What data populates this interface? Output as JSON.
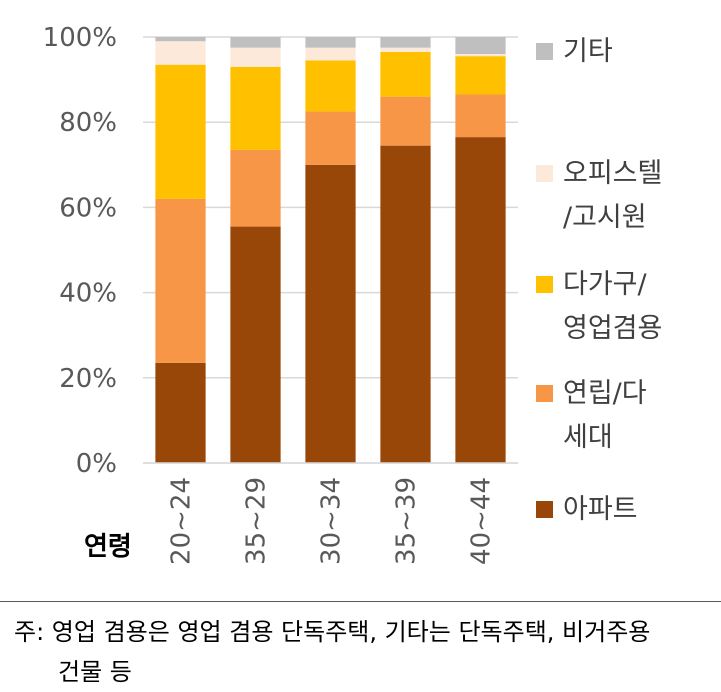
{
  "chart_data": {
    "type": "bar",
    "stacked": true,
    "categories": [
      "20~24",
      "35~29",
      "30~34",
      "35~39",
      "40~44"
    ],
    "xlabel": "연령",
    "ylim": [
      0,
      100
    ],
    "yticks": [
      "0%",
      "20%",
      "40%",
      "60%",
      "80%",
      "100%"
    ],
    "grid": true,
    "legend_position": "right",
    "series": [
      {
        "name": "아파트",
        "color": "#994709",
        "values": [
          23.5,
          55.5,
          70.0,
          74.5,
          76.5
        ]
      },
      {
        "name": "연립/다\n세대",
        "color": "#F79646",
        "values": [
          38.5,
          18.0,
          12.5,
          11.5,
          10.0
        ]
      },
      {
        "name": "다가구/\n영업겸용",
        "color": "#FFC000",
        "values": [
          31.5,
          19.5,
          12.0,
          10.5,
          9.0
        ]
      },
      {
        "name": "오피스텔\n/고시원",
        "color": "#FDE9D9",
        "values": [
          5.5,
          4.5,
          3.0,
          1.0,
          0.5
        ]
      },
      {
        "name": "기타",
        "color": "#BFBFBF",
        "values": [
          1.0,
          2.5,
          2.5,
          2.5,
          4.0
        ]
      }
    ],
    "legend_order": [
      4,
      3,
      2,
      1,
      0
    ]
  },
  "note": {
    "line1": "주: 영업 겸용은 영업 겸용 단독주택, 기타는 단독주택, 비거주용",
    "line2": "건물 등"
  }
}
